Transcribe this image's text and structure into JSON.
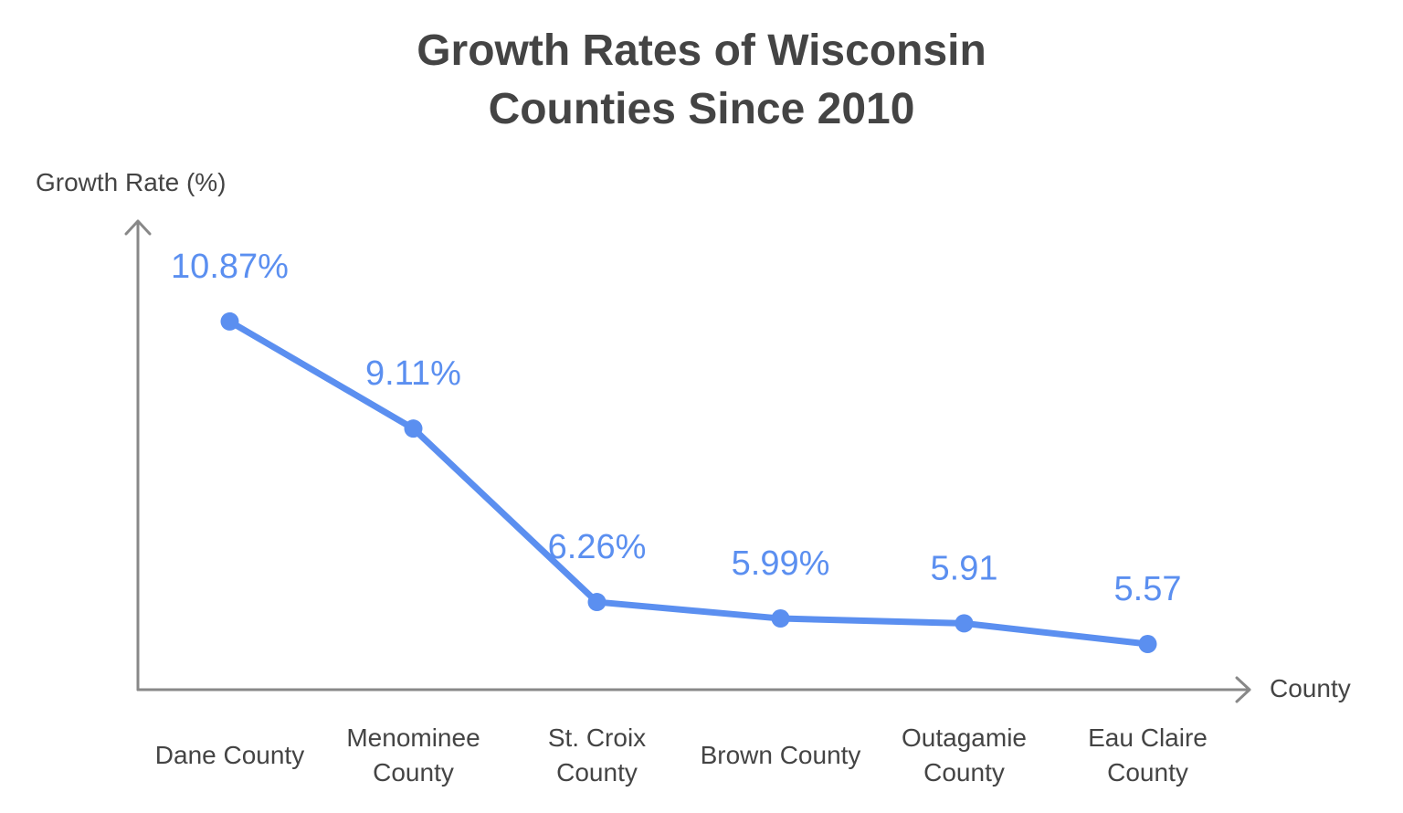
{
  "chart_data": {
    "type": "line",
    "title": "Growth Rates of Wisconsin Counties Since 2010",
    "y_label": "Growth Rate (%)",
    "x_label": "County",
    "categories": [
      "Dane County",
      "Menominee County",
      "St. Croix County",
      "Brown County",
      "Outagamie County",
      "Eau Claire County"
    ],
    "values": [
      10.87,
      9.11,
      6.26,
      5.99,
      5.91,
      5.57
    ],
    "value_labels": [
      "10.87%",
      "9.11%",
      "6.26%",
      "5.99%",
      "5.91",
      "5.57"
    ],
    "color": "#5b8ff0",
    "ylim": [
      4.82,
      12.52
    ]
  }
}
